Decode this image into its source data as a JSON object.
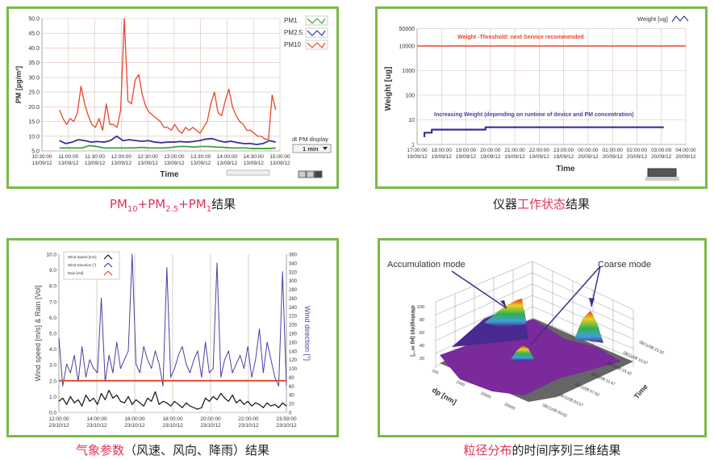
{
  "captions": {
    "c1": {
      "pm10": "PM",
      "pm10_sub": "10",
      "plus1": "+PM",
      "pm25_sub": "2.5",
      "plus2": "+PM",
      "pm1_sub": "1",
      "suffix": "结果"
    },
    "c2": {
      "pre": "仪器",
      "hl": "工作状态",
      "suffix": "结果"
    },
    "c3": {
      "hl": "气象参数",
      "suffix": "（风速、风向、降雨）结果"
    },
    "c4": {
      "hl": "粒径分布",
      "suffix": "的时间序列三维结果"
    }
  },
  "chart_data": [
    {
      "type": "line",
      "title": "",
      "xlabel": "Time",
      "ylabel": "PM [µg/m³]",
      "ylim": [
        5,
        50
      ],
      "xlim_hours": [
        10.5,
        15
      ],
      "yticks": [
        "5.0",
        "10.0",
        "15.0",
        "20.0",
        "25.0",
        "30.0",
        "35.0",
        "40.0",
        "45.0",
        "50.0"
      ],
      "xticks": [
        [
          "10:30:00",
          "13/09/12"
        ],
        [
          "11:00:00",
          "13/09/12"
        ],
        [
          "11:30:00",
          "13/09/12"
        ],
        [
          "12:00:00",
          "13/09/12"
        ],
        [
          "12:30:00",
          "13/09/12"
        ],
        [
          "13:00:00",
          "13/09/12"
        ],
        [
          "13:30:00",
          "13/09/12"
        ],
        [
          "14:00:00",
          "13/09/12"
        ],
        [
          "14:30:00",
          "13/09/12"
        ],
        [
          "15:00:00",
          "13/09/12"
        ]
      ],
      "x_start_hours": 10.83,
      "x_end_hours": 14.92,
      "series": [
        {
          "name": "PM1",
          "color": "#3aa03a",
          "values": [
            6,
            6,
            6,
            6,
            6.8,
            6.5,
            6,
            6,
            6,
            6,
            6,
            6.2,
            6,
            6,
            6,
            6.2,
            6.5,
            6.5,
            6.3,
            6.5,
            6.5,
            6.3,
            6.2,
            6,
            6,
            6,
            5.8,
            5.8,
            5.8,
            6
          ]
        },
        {
          "name": "PM2.5",
          "color": "#3a2f9a",
          "values": [
            8.5,
            7.5,
            8,
            8.8,
            8.5,
            8,
            8.2,
            8,
            8.5,
            10,
            8.5,
            8.8,
            8.5,
            8.3,
            8.5,
            8,
            7.8,
            8,
            8,
            8.2,
            8,
            8.2,
            8.5,
            9,
            9.2,
            8.5,
            8,
            8.3,
            7.8,
            7.5,
            7.5,
            7.2,
            7.5,
            8.5,
            8
          ]
        },
        {
          "name": "PM10",
          "color": "#e8452a",
          "values": [
            19,
            16,
            14,
            16,
            15,
            18,
            27,
            21,
            17,
            14,
            13,
            16,
            12,
            21,
            14,
            14,
            13,
            19,
            50,
            22,
            21,
            29,
            31,
            24,
            20,
            18,
            17,
            16,
            15,
            13,
            13,
            12,
            14,
            12,
            11,
            13,
            12,
            13,
            12,
            11,
            13,
            15,
            21,
            25,
            18,
            17,
            22,
            26,
            20,
            17,
            15,
            14,
            12,
            12,
            11,
            10,
            10,
            9,
            9,
            24,
            19
          ]
        }
      ],
      "legend": "top-right",
      "control_label": "dt PM display",
      "control_value": "1 min"
    },
    {
      "type": "line",
      "xlabel": "Time",
      "ylabel": "Weight [ug]",
      "yscale": "log",
      "ylim": [
        1,
        50000
      ],
      "yticks": [
        "1",
        "10",
        "100",
        "1000",
        "10000",
        "50000"
      ],
      "xticks": [
        [
          "17:00:00",
          "19/09/12"
        ],
        [
          "18:00:00",
          "19/09/12"
        ],
        [
          "19:00:00",
          "19/09/12"
        ],
        [
          "20:00:00",
          "19/09/12"
        ],
        [
          "21:00:00",
          "19/09/12"
        ],
        [
          "22:00:00",
          "19/09/12"
        ],
        [
          "23:00:00",
          "19/09/12"
        ],
        [
          "00:00:00",
          "20/09/12"
        ],
        [
          "01:00:00",
          "20/09/12"
        ],
        [
          "02:00:00",
          "20/09/12"
        ],
        [
          "03:00:00",
          "20/09/12"
        ],
        [
          "04:00:00",
          "20/09/12"
        ]
      ],
      "series": [
        {
          "name": "Weight [ug]",
          "color": "#3a2f9a",
          "points": [
            [
              17.3,
              2
            ],
            [
              17.3,
              3
            ],
            [
              17.6,
              3
            ],
            [
              17.6,
              4
            ],
            [
              19.8,
              4
            ],
            [
              19.8,
              5
            ],
            [
              27.1,
              5
            ]
          ]
        }
      ],
      "threshold": {
        "value": 10000,
        "color": "#e8452a",
        "label": "Weight -Threshold: next Service recommended"
      },
      "annotation": "Increasing Weight (depending on runtime of device and PM concentration)",
      "legend": "top-right"
    },
    {
      "type": "line",
      "xlabel": "",
      "ylabel": "Wind speed [m/s] & Rain [Vol]",
      "y2label": "Wind direction [°]",
      "ylim": [
        0,
        10
      ],
      "y2lim": [
        0,
        360
      ],
      "yticks": [
        "0.0",
        "1.0",
        "2.0",
        "3.0",
        "4.0",
        "5.0",
        "6.0",
        "7.0",
        "8.0",
        "9.0",
        "10.0"
      ],
      "y2ticks": [
        "0",
        "20",
        "40",
        "60",
        "80",
        "100",
        "120",
        "140",
        "160",
        "180",
        "200",
        "220",
        "240",
        "260",
        "280",
        "300",
        "320",
        "340",
        "360"
      ],
      "xticks": [
        [
          "12:00:00",
          "23/10/12"
        ],
        [
          "14:00:00",
          "23/10/12"
        ],
        [
          "16:00:00",
          "23/10/12"
        ],
        [
          "18:00:00",
          "23/10/12"
        ],
        [
          "20:00:00",
          "23/10/12"
        ],
        [
          "22:00:00",
          "23/10/12"
        ],
        [
          "23:59:00",
          "23/10/12"
        ]
      ],
      "series": [
        {
          "name": "Wind Speed [m/s]",
          "color": "#111111",
          "axis": "left",
          "values": [
            0.7,
            0.9,
            0.5,
            1.0,
            0.6,
            0.8,
            0.4,
            1.1,
            0.7,
            0.9,
            0.5,
            1.2,
            0.8,
            1.4,
            0.9,
            1.1,
            0.7,
            0.6,
            1.0,
            0.5,
            0.8,
            0.6,
            0.4,
            0.9,
            0.7,
            1.3,
            0.5,
            0.7,
            0.6,
            0.4,
            0.7,
            0.5,
            0.3,
            0.6,
            0.4,
            0.3,
            0.2,
            0.3,
            0.9,
            0.7,
            1.0,
            0.8,
            1.2,
            0.9,
            0.7,
            1.1,
            0.6,
            0.8,
            0.5,
            0.7,
            0.4,
            0.6,
            0.5,
            0.3,
            0.6,
            0.4,
            0.5,
            0.3,
            0.6,
            0.4
          ]
        },
        {
          "name": "Wind Direction [°]",
          "color": "#4a3fa0",
          "axis": "right",
          "values": [
            170,
            60,
            110,
            90,
            130,
            70,
            150,
            80,
            120,
            100,
            90,
            260,
            70,
            130,
            90,
            160,
            100,
            120,
            140,
            360,
            110,
            90,
            150,
            120,
            100,
            140,
            110,
            60,
            330,
            80,
            100,
            130,
            150,
            110,
            90,
            120,
            140,
            80,
            160,
            90,
            100,
            340,
            80,
            120,
            140,
            90,
            110,
            130,
            100,
            150,
            80,
            120,
            190,
            90,
            160,
            120,
            80,
            60,
            320,
            60
          ]
        },
        {
          "name": "Rain [Vol]",
          "color": "#e8452a",
          "axis": "left",
          "values": [
            2,
            2
          ]
        }
      ],
      "legend": "top-left"
    },
    {
      "type": "surface3d",
      "zlabel": "dN/dlog(dp) [µg m⁻³]",
      "xlabel": "dp [nm]",
      "ylabel": "Time",
      "zticks": [
        "20",
        "40",
        "60",
        "80",
        "100"
      ],
      "xticks": [
        "100",
        "1000",
        "10000",
        "20000"
      ],
      "yticks": [
        "08/11/08 00:02",
        "08/11/08 03:57",
        "08/11/08 07:52",
        "08/11/08 11:47",
        "08/11/08 15:42",
        "08/11/08 19:37",
        "08/11/08 23:32"
      ],
      "annotations": [
        "Accumulation mode",
        "Coarse mode"
      ]
    }
  ]
}
